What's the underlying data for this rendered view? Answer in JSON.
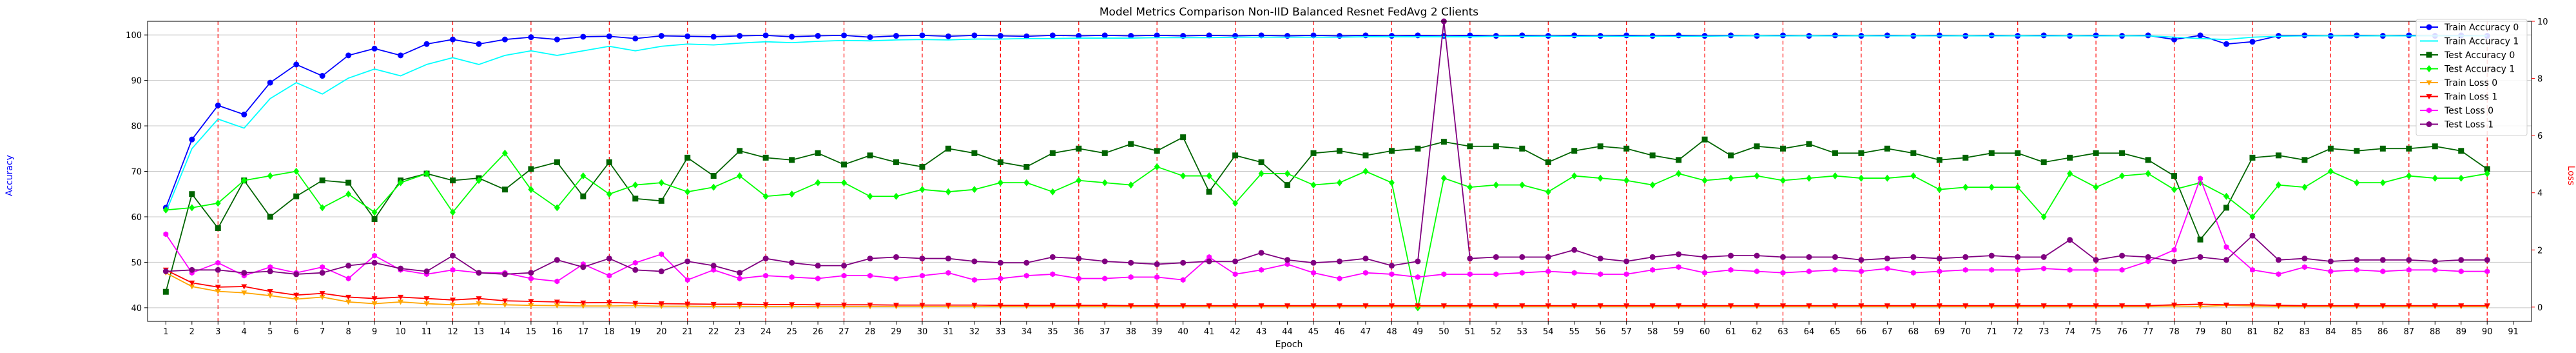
{
  "chart_data": {
    "type": "line",
    "title": "Model Metrics Comparison Non-IID Balanced Resnet FedAvg 2 Clients",
    "xlabel": "Epoch",
    "ylabel": "Accuracy",
    "y2label": "Loss",
    "x_ticks": [
      1,
      2,
      3,
      4,
      5,
      6,
      7,
      8,
      9,
      10,
      11,
      12,
      13,
      14,
      15,
      16,
      17,
      18,
      19,
      20,
      21,
      22,
      23,
      24,
      25,
      26,
      27,
      28,
      29,
      30,
      31,
      32,
      33,
      34,
      35,
      36,
      37,
      38,
      39,
      40,
      41,
      42,
      43,
      44,
      45,
      46,
      47,
      48,
      49,
      50,
      51,
      52,
      53,
      54,
      55,
      56,
      57,
      58,
      59,
      60,
      61,
      62,
      63,
      64,
      65,
      66,
      67,
      68,
      69,
      70,
      71,
      72,
      73,
      74,
      75,
      76,
      77,
      78,
      79,
      80,
      81,
      82,
      83,
      84,
      85,
      86,
      87,
      88,
      89,
      90,
      91
    ],
    "xlim": [
      0.3,
      91.7
    ],
    "ylim": [
      37,
      103
    ],
    "y_ticks": [
      40,
      50,
      60,
      70,
      80,
      90,
      100
    ],
    "y2lim": [
      -0.5,
      10
    ],
    "y2_ticks": [
      0,
      2,
      4,
      6,
      8,
      10
    ],
    "grid": "horizontal",
    "legend_position": "top-right",
    "vlines": [
      3,
      6,
      9,
      12,
      15,
      18,
      21,
      24,
      27,
      30,
      33,
      36,
      39,
      42,
      45,
      48,
      51,
      54,
      57,
      60,
      63,
      66,
      69,
      72,
      75,
      78,
      81,
      84,
      87,
      90
    ],
    "x": [
      1,
      2,
      3,
      4,
      5,
      6,
      7,
      8,
      9,
      10,
      11,
      12,
      13,
      14,
      15,
      16,
      17,
      18,
      19,
      20,
      21,
      22,
      23,
      24,
      25,
      26,
      27,
      28,
      29,
      30,
      31,
      32,
      33,
      34,
      35,
      36,
      37,
      38,
      39,
      40,
      41,
      42,
      43,
      44,
      45,
      46,
      47,
      48,
      49,
      50,
      51,
      52,
      53,
      54,
      55,
      56,
      57,
      58,
      59,
      60,
      61,
      62,
      63,
      64,
      65,
      66,
      67,
      68,
      69,
      70,
      71,
      72,
      73,
      74,
      75,
      76,
      77,
      78,
      79,
      80,
      81,
      82,
      83,
      84,
      85,
      86,
      87,
      88,
      89,
      90
    ],
    "series": [
      {
        "name": "Train Accuracy 0",
        "axis": "left",
        "color": "#0000ff",
        "marker": "circle",
        "values": [
          62,
          77,
          84.5,
          82.5,
          89.5,
          93.5,
          91,
          95.5,
          97,
          95.5,
          98,
          99,
          98,
          99,
          99.5,
          99,
          99.6,
          99.7,
          99.2,
          99.8,
          99.7,
          99.6,
          99.8,
          99.9,
          99.6,
          99.8,
          99.9,
          99.5,
          99.8,
          99.9,
          99.7,
          99.9,
          99.8,
          99.7,
          99.9,
          99.8,
          99.9,
          99.8,
          99.9,
          99.8,
          99.9,
          99.8,
          99.9,
          99.8,
          99.9,
          99.8,
          99.9,
          99.8,
          99.9,
          99.8,
          99.9,
          99.8,
          99.9,
          99.8,
          99.9,
          99.8,
          99.9,
          99.8,
          99.9,
          99.8,
          99.9,
          99.8,
          99.9,
          99.8,
          99.9,
          99.8,
          99.9,
          99.8,
          99.9,
          99.8,
          99.9,
          99.8,
          99.9,
          99.8,
          99.9,
          99.8,
          99.9,
          99,
          99.9,
          98,
          98.5,
          99.8,
          99.9,
          99.8,
          99.9,
          99.8,
          99.9,
          99.8,
          99.9,
          99.8
        ]
      },
      {
        "name": "Train Accuracy 1",
        "axis": "left",
        "color": "#00ffff",
        "marker": "none",
        "values": [
          61,
          75,
          81.5,
          79.5,
          86,
          89.5,
          87,
          90.5,
          92.5,
          91,
          93.5,
          95,
          93.5,
          95.5,
          96.5,
          95.5,
          96.5,
          97.5,
          96.5,
          97.5,
          98,
          97.8,
          98.2,
          98.5,
          98.3,
          98.6,
          98.8,
          98.7,
          98.9,
          99,
          98.9,
          99.1,
          99.1,
          99.2,
          99.2,
          99.3,
          99.3,
          99.3,
          99.4,
          99.4,
          99.4,
          99.5,
          99.5,
          99.5,
          99.5,
          99.5,
          99.6,
          99.6,
          99.6,
          99.6,
          99.6,
          99.7,
          99.7,
          99.7,
          99.7,
          99.7,
          99.7,
          99.7,
          99.7,
          99.7,
          99.8,
          99.8,
          99.8,
          99.8,
          99.8,
          99.8,
          99.8,
          99.8,
          99.8,
          99.8,
          99.8,
          99.8,
          99.8,
          99.8,
          99.8,
          99.8,
          99.8,
          99.5,
          99.2,
          99,
          99.5,
          99.7,
          99.8,
          99.8,
          99.8,
          99.8,
          99.8,
          99.8,
          99.8,
          99.8
        ]
      },
      {
        "name": "Test Accuracy 0",
        "axis": "left",
        "color": "#006400",
        "marker": "square",
        "values": [
          43.5,
          65,
          57.5,
          68,
          60,
          64.5,
          68,
          67.5,
          59.5,
          68,
          69.5,
          68,
          68.5,
          66,
          70.5,
          72,
          64.5,
          72,
          64,
          63.5,
          73,
          69,
          74.5,
          73,
          72.5,
          74,
          71.5,
          73.5,
          72,
          71,
          75,
          74,
          72,
          71,
          74,
          75,
          74,
          76,
          74.5,
          77.5,
          65.5,
          73.5,
          72,
          67,
          74,
          74.5,
          73.5,
          74.5,
          75,
          76.5,
          75.5,
          75.5,
          75,
          72,
          74.5,
          75.5,
          75,
          73.5,
          72.5,
          77,
          73.5,
          75.5,
          75,
          76,
          74,
          74,
          75,
          74,
          72.5,
          73,
          74,
          74,
          72,
          73,
          74,
          74,
          72.5,
          69,
          55,
          62,
          73,
          73.5,
          72.5,
          75,
          74.5,
          75,
          75,
          75.5,
          74.5,
          70.5
        ]
      },
      {
        "name": "Test Accuracy 1",
        "axis": "left",
        "color": "#00ff00",
        "marker": "diamond",
        "values": [
          61.5,
          62,
          63,
          68,
          69,
          70,
          62,
          65,
          61,
          67.5,
          69.5,
          61,
          68,
          74,
          66,
          62,
          69,
          65,
          67,
          67.5,
          65.5,
          66.5,
          69,
          64.5,
          65,
          67.5,
          67.5,
          64.5,
          64.5,
          66,
          65.5,
          66,
          67.5,
          67.5,
          65.5,
          68,
          67.5,
          67,
          71,
          69,
          69,
          63,
          69.5,
          69.5,
          67,
          67.5,
          70,
          67.5,
          40,
          68.5,
          66.5,
          67,
          67,
          65.5,
          69,
          68.5,
          68,
          67,
          69.5,
          68,
          68.5,
          69,
          68,
          68.5,
          69,
          68.5,
          68.5,
          69,
          66,
          66.5,
          66.5,
          66.5,
          60,
          69.5,
          66.5,
          69,
          69.5,
          66,
          67.5,
          64.5,
          60,
          67,
          66.5,
          70,
          67.5,
          67.5,
          69,
          68.5,
          68.5,
          69.5
        ]
      },
      {
        "name": "Train Loss 0",
        "axis": "right",
        "color": "#ffa500",
        "marker": "triangle-down",
        "values": [
          1.2,
          0.72,
          0.55,
          0.5,
          0.4,
          0.28,
          0.35,
          0.18,
          0.12,
          0.18,
          0.12,
          0.08,
          0.12,
          0.08,
          0.06,
          0.05,
          0.04,
          0.04,
          0.05,
          0.03,
          0.03,
          0.02,
          0.02,
          0.02,
          0.02,
          0.02,
          0.02,
          0.02,
          0.02,
          0.02,
          0.02,
          0.02,
          0.02,
          0.02,
          0.02,
          0.02,
          0.02,
          0.02,
          0.02,
          0.02,
          0.02,
          0.02,
          0.02,
          0.02,
          0.02,
          0.02,
          0.02,
          0.02,
          0.02,
          0.02,
          0.02,
          0.02,
          0.02,
          0.02,
          0.02,
          0.02,
          0.02,
          0.02,
          0.02,
          0.02,
          0.02,
          0.02,
          0.02,
          0.02,
          0.02,
          0.02,
          0.02,
          0.02,
          0.02,
          0.02,
          0.02,
          0.02,
          0.02,
          0.02,
          0.02,
          0.02,
          0.02,
          0.04,
          0.02,
          0.06,
          0.04,
          0.02,
          0.02,
          0.02,
          0.02,
          0.02,
          0.02,
          0.02,
          0.02,
          0.02
        ]
      },
      {
        "name": "Train Loss 1",
        "axis": "right",
        "color": "#ff0000",
        "marker": "triangle-down",
        "values": [
          1.3,
          0.85,
          0.7,
          0.72,
          0.55,
          0.42,
          0.48,
          0.35,
          0.3,
          0.35,
          0.3,
          0.25,
          0.3,
          0.22,
          0.2,
          0.18,
          0.15,
          0.16,
          0.14,
          0.12,
          0.11,
          0.1,
          0.1,
          0.09,
          0.09,
          0.08,
          0.08,
          0.08,
          0.07,
          0.07,
          0.07,
          0.07,
          0.06,
          0.06,
          0.06,
          0.06,
          0.06,
          0.05,
          0.05,
          0.05,
          0.05,
          0.05,
          0.05,
          0.05,
          0.05,
          0.05,
          0.05,
          0.05,
          0.05,
          0.05,
          0.05,
          0.05,
          0.05,
          0.05,
          0.05,
          0.05,
          0.05,
          0.05,
          0.05,
          0.05,
          0.05,
          0.05,
          0.05,
          0.05,
          0.05,
          0.05,
          0.05,
          0.05,
          0.05,
          0.05,
          0.05,
          0.05,
          0.05,
          0.05,
          0.05,
          0.05,
          0.05,
          0.08,
          0.1,
          0.08,
          0.08,
          0.06,
          0.05,
          0.05,
          0.05,
          0.05,
          0.05,
          0.05,
          0.05,
          0.05
        ]
      },
      {
        "name": "Test Loss 0",
        "axis": "right",
        "color": "#ff00ff",
        "marker": "hexagon",
        "values": [
          2.55,
          1.2,
          1.55,
          1.1,
          1.4,
          1.2,
          1.4,
          1.0,
          1.8,
          1.3,
          1.15,
          1.3,
          1.2,
          1.2,
          1.0,
          0.9,
          1.5,
          1.1,
          1.55,
          1.85,
          0.95,
          1.3,
          1.0,
          1.1,
          1.05,
          1.0,
          1.1,
          1.1,
          1.0,
          1.1,
          1.2,
          0.95,
          1.0,
          1.1,
          1.15,
          1.0,
          1.0,
          1.05,
          1.05,
          0.95,
          1.75,
          1.15,
          1.3,
          1.5,
          1.2,
          1.0,
          1.2,
          1.15,
          1.05,
          1.15,
          1.15,
          1.15,
          1.2,
          1.25,
          1.2,
          1.15,
          1.15,
          1.3,
          1.4,
          1.2,
          1.3,
          1.25,
          1.2,
          1.25,
          1.3,
          1.25,
          1.35,
          1.2,
          1.25,
          1.3,
          1.3,
          1.3,
          1.35,
          1.3,
          1.3,
          1.3,
          1.6,
          2.0,
          4.5,
          2.1,
          1.3,
          1.15,
          1.4,
          1.25,
          1.3,
          1.25,
          1.3,
          1.3,
          1.25,
          1.25
        ]
      },
      {
        "name": "Test Loss 1",
        "axis": "right",
        "color": "#800080",
        "marker": "circle",
        "values": [
          1.25,
          1.3,
          1.3,
          1.2,
          1.25,
          1.15,
          1.2,
          1.45,
          1.55,
          1.35,
          1.25,
          1.8,
          1.2,
          1.15,
          1.2,
          1.65,
          1.4,
          1.7,
          1.3,
          1.25,
          1.6,
          1.45,
          1.2,
          1.7,
          1.55,
          1.45,
          1.45,
          1.7,
          1.75,
          1.7,
          1.7,
          1.6,
          1.55,
          1.55,
          1.75,
          1.7,
          1.6,
          1.55,
          1.5,
          1.55,
          1.6,
          1.6,
          1.9,
          1.65,
          1.55,
          1.6,
          1.7,
          1.45,
          1.6,
          10,
          1.7,
          1.75,
          1.75,
          1.75,
          2.0,
          1.7,
          1.6,
          1.75,
          1.85,
          1.75,
          1.8,
          1.8,
          1.75,
          1.75,
          1.75,
          1.65,
          1.7,
          1.75,
          1.7,
          1.75,
          1.8,
          1.75,
          1.75,
          2.35,
          1.65,
          1.8,
          1.75,
          1.6,
          1.75,
          1.65,
          2.5,
          1.65,
          1.7,
          1.6,
          1.65,
          1.65,
          1.65,
          1.6,
          1.65,
          1.65
        ]
      }
    ]
  }
}
